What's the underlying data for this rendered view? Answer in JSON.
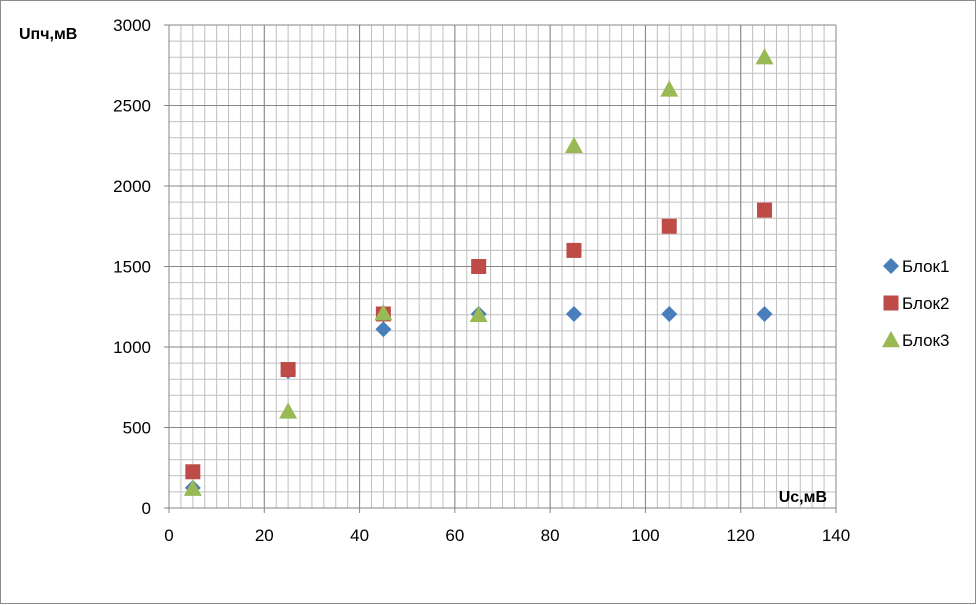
{
  "chart_data": {
    "type": "scatter",
    "xlabel": "Uc,мВ",
    "ylabel": "Uпч,мВ",
    "xlim": [
      0,
      140
    ],
    "ylim": [
      0,
      3000
    ],
    "x_ticks": [
      0,
      20,
      40,
      60,
      80,
      100,
      120,
      140
    ],
    "y_ticks": [
      0,
      500,
      1000,
      1500,
      2000,
      2500,
      3000
    ],
    "grid": true,
    "legend_position": "right",
    "series": [
      {
        "name": "Блок1",
        "marker": "diamond",
        "color": "#4a7ebb",
        "x": [
          5,
          25,
          45,
          65,
          85,
          105,
          125
        ],
        "y": [
          125,
          850,
          1110,
          1205,
          1205,
          1205,
          1205
        ]
      },
      {
        "name": "Блок2",
        "marker": "square",
        "color": "#be4b48",
        "x": [
          5,
          25,
          45,
          65,
          85,
          105,
          125
        ],
        "y": [
          225,
          860,
          1205,
          1500,
          1600,
          1750,
          1850
        ]
      },
      {
        "name": "Блок3",
        "marker": "triangle",
        "color": "#98b954",
        "x": [
          5,
          25,
          45,
          65,
          85,
          105,
          125
        ],
        "y": [
          120,
          600,
          1210,
          1200,
          2250,
          2600,
          2800
        ]
      }
    ]
  }
}
